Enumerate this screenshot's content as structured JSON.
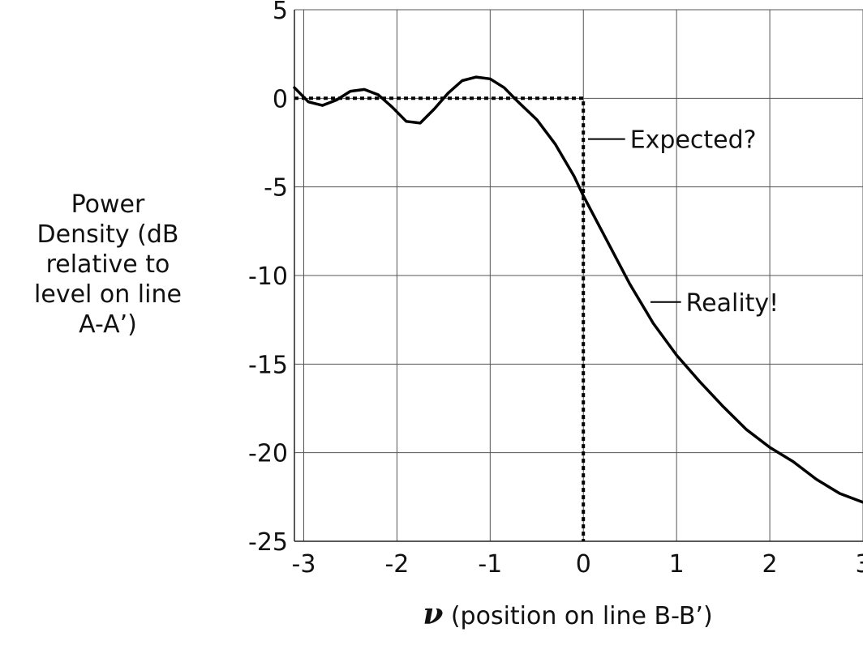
{
  "chart_data": {
    "type": "line",
    "title": "",
    "ylabel_lines": [
      "Power",
      "Density (dB",
      "relative to",
      "level on line",
      "A-A’)"
    ],
    "xlabel_symbol": "ν",
    "xlabel_text": " (position on line B-B’)",
    "xlim": [
      -3.1,
      3.0
    ],
    "ylim": [
      -25,
      5
    ],
    "xticks": [
      -3,
      -2,
      -1,
      0,
      1,
      2,
      3
    ],
    "yticks": [
      -25,
      -20,
      -15,
      -10,
      -5,
      0,
      5
    ],
    "xtick_labels": [
      "-3",
      "-2",
      "-1",
      "0",
      "1",
      "2",
      "3"
    ],
    "ytick_labels": [
      "-25",
      "-20",
      "-15",
      "-10",
      "-5",
      "0",
      "5"
    ],
    "grid": true,
    "series": [
      {
        "style": "dotted",
        "x": [
          -3.1,
          0,
          0
        ],
        "y": [
          0,
          0,
          -25
        ]
      },
      {
        "style": "solid",
        "x": [
          -3.1,
          -2.95,
          -2.8,
          -2.65,
          -2.5,
          -2.35,
          -2.2,
          -2.05,
          -1.9,
          -1.75,
          -1.6,
          -1.45,
          -1.3,
          -1.15,
          -1.0,
          -0.85,
          -0.7,
          -0.5,
          -0.3,
          -0.1,
          0.0,
          0.2,
          0.5,
          0.75,
          1.0,
          1.25,
          1.5,
          1.75,
          2.0,
          2.25,
          2.5,
          2.75,
          3.0
        ],
        "y": [
          0.6,
          -0.2,
          -0.4,
          -0.1,
          0.4,
          0.5,
          0.2,
          -0.5,
          -1.3,
          -1.4,
          -0.6,
          0.3,
          1.0,
          1.2,
          1.1,
          0.6,
          -0.2,
          -1.2,
          -2.6,
          -4.4,
          -5.5,
          -7.5,
          -10.5,
          -12.7,
          -14.5,
          -16.0,
          -17.4,
          -18.7,
          -19.7,
          -20.5,
          -21.5,
          -22.3,
          -22.8
        ]
      }
    ],
    "annotations": [
      {
        "text": "Expected?",
        "x": 0.05,
        "y": -2.3,
        "tx": 0.5
      },
      {
        "text": "Reality!",
        "x": 0.72,
        "y": -11.5,
        "tx": 1.1
      }
    ]
  }
}
